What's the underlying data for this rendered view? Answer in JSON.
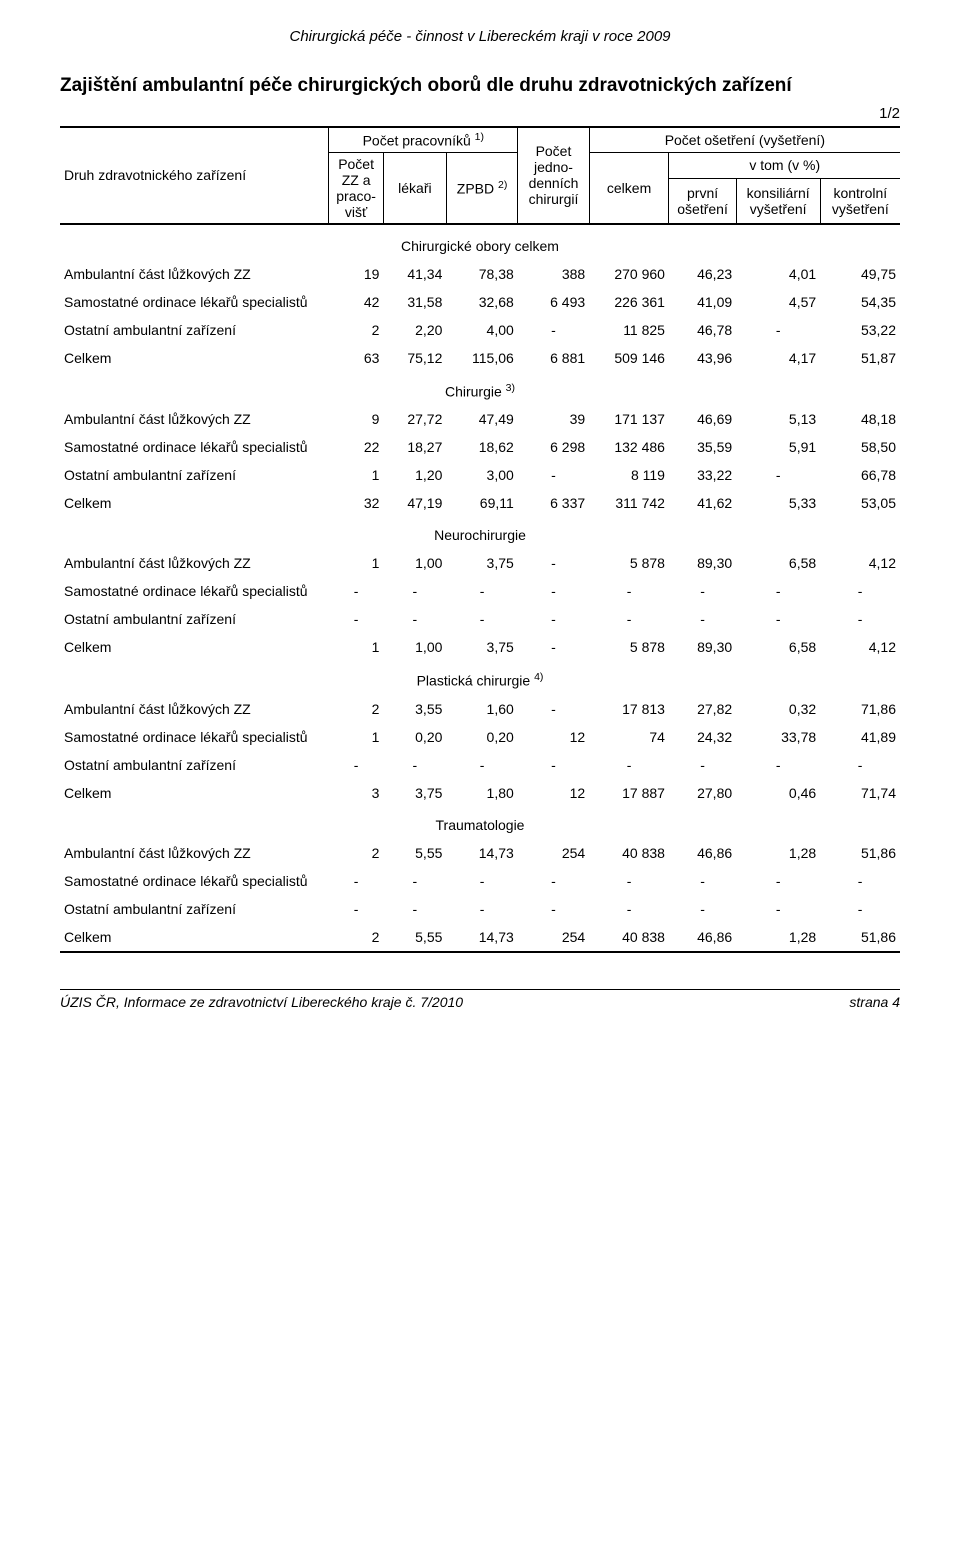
{
  "top_header": "Chirurgická péče - činnost v Libereckém kraji v roce 2009",
  "title": "Zajištění ambulantní péče chirurgických oborů dle druhu zdravotnických zařízení",
  "page_frac": "1/2",
  "header": {
    "row_label": "Druh zdravotnického zařízení",
    "workers": "Počet pracovníků ",
    "workers_sup": "1)",
    "treatments": "Počet ošetření (vyšetření)",
    "zz": "Počet ZZ a praco- višť",
    "doctors": "lékaři",
    "zpbd": "ZPBD ",
    "zpbd_sup": "2)",
    "surgeries": "Počet jedno- denních chirurgií",
    "total": "celkem",
    "pct": "v tom (v %)",
    "first": "první ošetření",
    "cons": "konsiliární vyšetření",
    "control": "kontrolní vyšetření"
  },
  "row_labels": {
    "amb": "Ambulantní část lůžkových ZZ",
    "sam": "Samostatné ordinace lékařů specialistů",
    "ost": "Ostatní ambulantní zařízení",
    "cel": "Celkem"
  },
  "sections": [
    {
      "title": "Chirurgické obory celkem",
      "rows": [
        [
          "19",
          "41,34",
          "78,38",
          "388",
          "270 960",
          "46,23",
          "4,01",
          "49,75"
        ],
        [
          "42",
          "31,58",
          "32,68",
          "6 493",
          "226 361",
          "41,09",
          "4,57",
          "54,35"
        ],
        [
          "2",
          "2,20",
          "4,00",
          "-",
          "11 825",
          "46,78",
          "-",
          "53,22"
        ],
        [
          "63",
          "75,12",
          "115,06",
          "6 881",
          "509 146",
          "43,96",
          "4,17",
          "51,87"
        ]
      ]
    },
    {
      "title": "Chirurgie ",
      "title_sup": "3)",
      "rows": [
        [
          "9",
          "27,72",
          "47,49",
          "39",
          "171 137",
          "46,69",
          "5,13",
          "48,18"
        ],
        [
          "22",
          "18,27",
          "18,62",
          "6 298",
          "132 486",
          "35,59",
          "5,91",
          "58,50"
        ],
        [
          "1",
          "1,20",
          "3,00",
          "-",
          "8 119",
          "33,22",
          "-",
          "66,78"
        ],
        [
          "32",
          "47,19",
          "69,11",
          "6 337",
          "311 742",
          "41,62",
          "5,33",
          "53,05"
        ]
      ]
    },
    {
      "title": "Neurochirurgie",
      "rows": [
        [
          "1",
          "1,00",
          "3,75",
          "-",
          "5 878",
          "89,30",
          "6,58",
          "4,12"
        ],
        [
          "-",
          "-",
          "-",
          "-",
          "-",
          "-",
          "-",
          "-"
        ],
        [
          "-",
          "-",
          "-",
          "-",
          "-",
          "-",
          "-",
          "-"
        ],
        [
          "1",
          "1,00",
          "3,75",
          "-",
          "5 878",
          "89,30",
          "6,58",
          "4,12"
        ]
      ]
    },
    {
      "title": "Plastická chirurgie ",
      "title_sup": "4)",
      "rows": [
        [
          "2",
          "3,55",
          "1,60",
          "-",
          "17 813",
          "27,82",
          "0,32",
          "71,86"
        ],
        [
          "1",
          "0,20",
          "0,20",
          "12",
          "74",
          "24,32",
          "33,78",
          "41,89"
        ],
        [
          "-",
          "-",
          "-",
          "-",
          "-",
          "-",
          "-",
          "-"
        ],
        [
          "3",
          "3,75",
          "1,80",
          "12",
          "17 887",
          "27,80",
          "0,46",
          "71,74"
        ]
      ]
    },
    {
      "title": "Traumatologie",
      "rows": [
        [
          "2",
          "5,55",
          "14,73",
          "254",
          "40 838",
          "46,86",
          "1,28",
          "51,86"
        ],
        [
          "-",
          "-",
          "-",
          "-",
          "-",
          "-",
          "-",
          "-"
        ],
        [
          "-",
          "-",
          "-",
          "-",
          "-",
          "-",
          "-",
          "-"
        ],
        [
          "2",
          "5,55",
          "14,73",
          "254",
          "40 838",
          "46,86",
          "1,28",
          "51,86"
        ]
      ]
    }
  ],
  "footer": {
    "left": "ÚZIS ČR, Informace ze zdravotnictví Libereckého kraje č. 7/2010",
    "right": "strana 4"
  },
  "col_widths": [
    "32%",
    "6.5%",
    "7.5%",
    "8.5%",
    "8.5%",
    "9.5%",
    "8%",
    "10%",
    "9.5%"
  ]
}
